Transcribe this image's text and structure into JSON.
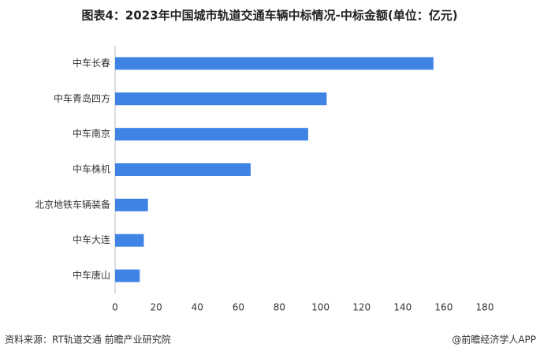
{
  "chart_data": {
    "type": "barh",
    "title": "图表4：2023年中国城市轨道交通车辆中标情况-中标金额(单位：亿元)",
    "categories": [
      "中车长春",
      "中车青岛四方",
      "中车南京",
      "中车株机",
      "北京地铁车辆装备",
      "中车大连",
      "中车唐山"
    ],
    "values": [
      155,
      103,
      94,
      66,
      16,
      14,
      12
    ],
    "color": "#3f84e5",
    "xlim": [
      0,
      180
    ],
    "xticks": [
      0,
      20,
      40,
      60,
      80,
      100,
      120,
      140,
      160,
      180
    ],
    "grid": false,
    "source": "资料来源：RT轨道交通 前瞻产业研究院",
    "credit": "@前瞻经济学人APP"
  }
}
